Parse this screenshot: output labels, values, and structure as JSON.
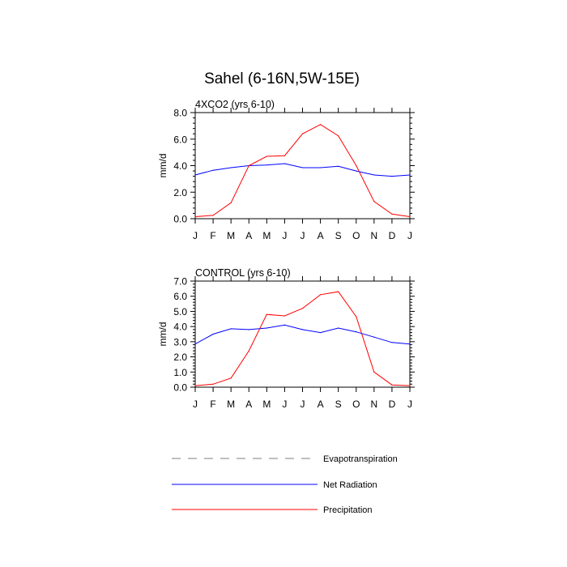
{
  "title": "Sahel (6-16N,5W-15E)",
  "chart_data": [
    {
      "type": "line",
      "panel_title": "4XCO2 (yrs 6-10)",
      "ylabel": "mm/d",
      "ylim": [
        0,
        8
      ],
      "yticks": [
        0,
        2,
        4,
        6,
        8
      ],
      "ytick_labels": [
        "0.0",
        "2.0",
        "4.0",
        "6.0",
        "8.0"
      ],
      "categories": [
        "J",
        "F",
        "M",
        "A",
        "M",
        "J",
        "J",
        "A",
        "S",
        "O",
        "N",
        "D",
        "J"
      ],
      "series": [
        {
          "name": "Net Radiation",
          "color": "#0000ff",
          "values": [
            3.3,
            3.65,
            3.85,
            4.0,
            4.05,
            4.15,
            3.85,
            3.85,
            3.95,
            3.6,
            3.3,
            3.2,
            3.3
          ]
        },
        {
          "name": "Precipitation",
          "color": "#ff0000",
          "values": [
            0.15,
            0.25,
            1.2,
            4.0,
            4.7,
            4.75,
            6.4,
            7.1,
            6.25,
            4.0,
            1.3,
            0.35,
            0.15
          ]
        }
      ]
    },
    {
      "type": "line",
      "panel_title": "CONTROL (yrs 6-10)",
      "ylabel": "mm/d",
      "ylim": [
        0,
        7
      ],
      "yticks": [
        0,
        1,
        2,
        3,
        4,
        5,
        6,
        7
      ],
      "ytick_labels": [
        "0.0",
        "1.0",
        "2.0",
        "3.0",
        "4.0",
        "5.0",
        "6.0",
        "7.0"
      ],
      "categories": [
        "J",
        "F",
        "M",
        "A",
        "M",
        "J",
        "J",
        "A",
        "S",
        "O",
        "N",
        "D",
        "J"
      ],
      "series": [
        {
          "name": "Net Radiation",
          "color": "#0000ff",
          "values": [
            2.85,
            3.5,
            3.85,
            3.8,
            3.9,
            4.1,
            3.8,
            3.6,
            3.9,
            3.65,
            3.3,
            2.95,
            2.85
          ]
        },
        {
          "name": "Precipitation",
          "color": "#ff0000",
          "values": [
            0.1,
            0.2,
            0.6,
            2.4,
            4.8,
            4.7,
            5.2,
            6.1,
            6.3,
            4.65,
            1.0,
            0.15,
            0.1
          ]
        }
      ]
    }
  ],
  "legend": [
    {
      "label": "Evapotranspiration",
      "color": "#999999",
      "style": "dashed"
    },
    {
      "label": "Net Radiation",
      "color": "#0000ff",
      "style": "solid"
    },
    {
      "label": "Precipitation",
      "color": "#ff0000",
      "style": "solid"
    }
  ]
}
